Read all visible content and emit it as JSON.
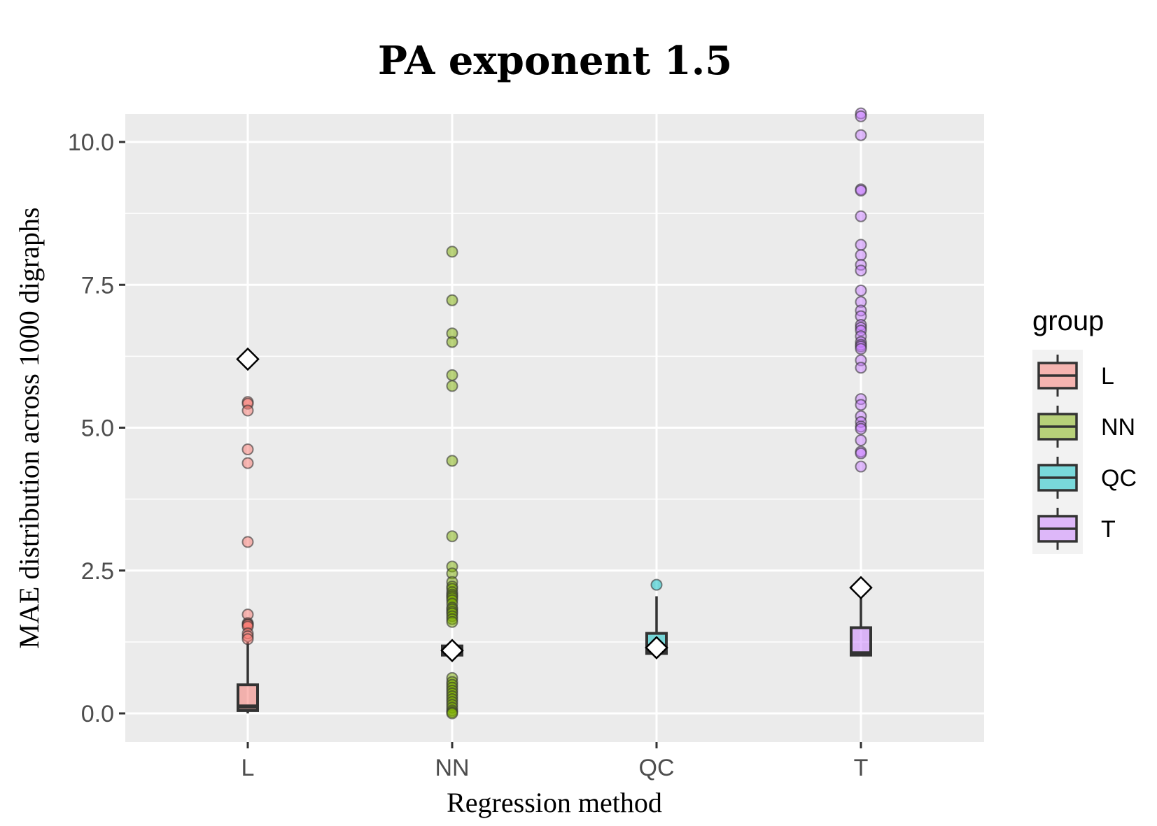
{
  "chart_data": {
    "type": "box",
    "title": "PA exponent 1.5",
    "xlabel": "Regression method",
    "ylabel": "MAE distribution across 1000 digraphs",
    "categories": [
      "L",
      "NN",
      "QC",
      "T"
    ],
    "ylim": [
      -0.5,
      10.5
    ],
    "yticks": [
      0.0,
      2.5,
      5.0,
      7.5,
      10.0
    ],
    "ytick_labels": [
      "0.0",
      "2.5",
      "5.0",
      "7.5",
      "10.0"
    ],
    "grid": true,
    "legend": {
      "title": "group",
      "position": "right",
      "entries": [
        "L",
        "NN",
        "QC",
        "T"
      ]
    },
    "colors": {
      "L": "#f8766d",
      "NN": "#7cae00",
      "QC": "#00bfc4",
      "T": "#c77cff"
    },
    "series": [
      {
        "name": "L",
        "box": {
          "whisker_low": 0.0,
          "q1": 0.05,
          "median": 0.12,
          "q3": 0.5,
          "whisker_high": 1.25
        },
        "mean": 6.2,
        "outliers": [
          5.45,
          5.42,
          5.3,
          4.62,
          4.38,
          3.0,
          1.73,
          1.58,
          1.56,
          1.55,
          1.52,
          1.4,
          1.35,
          1.3
        ]
      },
      {
        "name": "NN",
        "box": {
          "whisker_low": 0.95,
          "q1": 1.02,
          "median": 1.08,
          "q3": 1.18,
          "whisker_high": 1.25
        },
        "mean": 1.1,
        "outliers": [
          8.08,
          7.23,
          6.65,
          6.5,
          5.92,
          5.73,
          4.42,
          3.1,
          2.57,
          2.45,
          2.3,
          2.22,
          2.18,
          2.12,
          2.08,
          2.05,
          2.02,
          1.98,
          1.92,
          1.85,
          1.82,
          1.78,
          1.75,
          1.7,
          1.65,
          1.6,
          0.62,
          0.55,
          0.5,
          0.45,
          0.4,
          0.35,
          0.3,
          0.25,
          0.2,
          0.15,
          0.1,
          0.05,
          0.02,
          0.0
        ]
      },
      {
        "name": "QC",
        "box": {
          "whisker_low": 1.02,
          "q1": 1.05,
          "median": 1.1,
          "q3": 1.4,
          "whisker_high": 2.05
        },
        "mean": 1.15,
        "outliers": [
          2.25
        ]
      },
      {
        "name": "T",
        "box": {
          "whisker_low": 1.0,
          "q1": 1.02,
          "median": 1.05,
          "q3": 1.5,
          "whisker_high": 2.15
        },
        "mean": 2.2,
        "outliers": [
          10.5,
          10.45,
          10.12,
          9.17,
          9.15,
          8.7,
          8.2,
          8.02,
          7.85,
          7.75,
          7.4,
          7.2,
          7.05,
          6.95,
          6.8,
          6.75,
          6.7,
          6.6,
          6.5,
          6.45,
          6.42,
          6.38,
          6.18,
          6.05,
          5.5,
          5.4,
          5.2,
          5.1,
          5.02,
          4.98,
          4.78,
          4.58,
          4.55,
          4.32
        ]
      }
    ]
  }
}
